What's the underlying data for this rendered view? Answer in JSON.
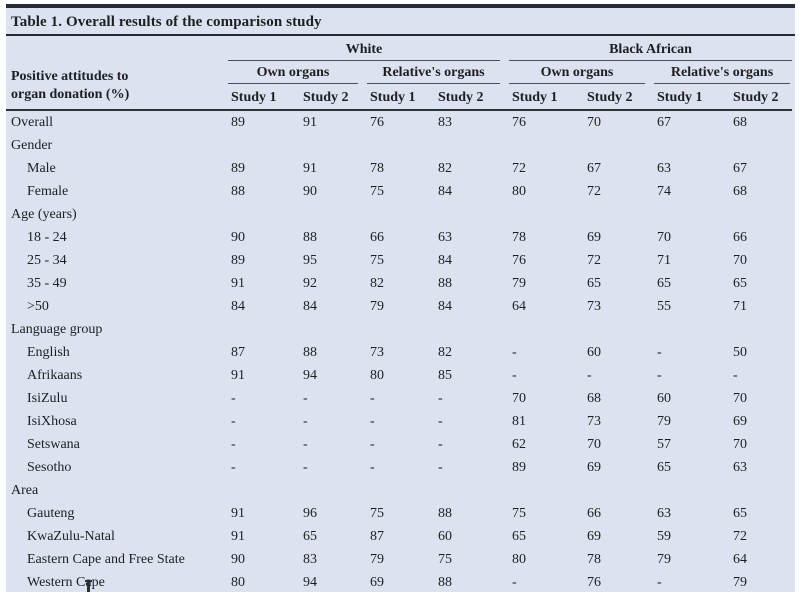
{
  "title": "Table 1. Overall results of the comparison study",
  "header": {
    "row_label_line1": "Positive attitudes to",
    "row_label_line2": "organ donation (%)",
    "group1": "White",
    "group2": "Black African",
    "subgroups": [
      "Own organs",
      "Relative's organs",
      "Own organs",
      "Relative's organs"
    ],
    "study_cols": [
      "Study 1",
      "Study 2",
      "Study 1",
      "Study 2",
      "Study 1",
      "Study 2",
      "Study 1",
      "Study 2"
    ]
  },
  "colors": {
    "table_background": "#dce2ef",
    "rule_dark": "#272b33",
    "rule_light": "#4b515d",
    "text": "#1e1f24",
    "page_background": "#ffffff"
  },
  "rows": [
    {
      "label": "Overall",
      "type": "data",
      "indent": false,
      "values": [
        "89",
        "91",
        "76",
        "83",
        "76",
        "70",
        "67",
        "68"
      ]
    },
    {
      "label": "Gender",
      "type": "section",
      "indent": false,
      "values": []
    },
    {
      "label": "Male",
      "type": "data",
      "indent": true,
      "values": [
        "89",
        "91",
        "78",
        "82",
        "72",
        "67",
        "63",
        "67"
      ]
    },
    {
      "label": "Female",
      "type": "data",
      "indent": true,
      "values": [
        "88",
        "90",
        "75",
        "84",
        "80",
        "72",
        "74",
        "68"
      ]
    },
    {
      "label": "Age (years)",
      "type": "section",
      "indent": false,
      "values": []
    },
    {
      "label": "18 - 24",
      "type": "data",
      "indent": true,
      "values": [
        "90",
        "88",
        "66",
        "63",
        "78",
        "69",
        "70",
        "66"
      ]
    },
    {
      "label": "25 - 34",
      "type": "data",
      "indent": true,
      "values": [
        "89",
        "95",
        "75",
        "84",
        "76",
        "72",
        "71",
        "70"
      ]
    },
    {
      "label": "35 - 49",
      "type": "data",
      "indent": true,
      "values": [
        "91",
        "92",
        "82",
        "88",
        "79",
        "65",
        "65",
        "65"
      ]
    },
    {
      "label": ">50",
      "type": "data",
      "indent": true,
      "values": [
        "84",
        "84",
        "79",
        "84",
        "64",
        "73",
        "55",
        "71"
      ]
    },
    {
      "label": "Language group",
      "type": "section",
      "indent": false,
      "values": []
    },
    {
      "label": "English",
      "type": "data",
      "indent": true,
      "values": [
        "87",
        "88",
        "73",
        "82",
        "-",
        "60",
        "-",
        "50"
      ]
    },
    {
      "label": "Afrikaans",
      "type": "data",
      "indent": true,
      "values": [
        "91",
        "94",
        "80",
        "85",
        "-",
        "-",
        "-",
        "-"
      ]
    },
    {
      "label": "IsiZulu",
      "type": "data",
      "indent": true,
      "values": [
        "-",
        "-",
        "-",
        "-",
        "70",
        "68",
        "60",
        "70"
      ]
    },
    {
      "label": "IsiXhosa",
      "type": "data",
      "indent": true,
      "values": [
        "-",
        "-",
        "-",
        "-",
        "81",
        "73",
        "79",
        "69"
      ]
    },
    {
      "label": "Setswana",
      "type": "data",
      "indent": true,
      "values": [
        "-",
        "-",
        "-",
        "-",
        "62",
        "70",
        "57",
        "70"
      ]
    },
    {
      "label": "Sesotho",
      "type": "data",
      "indent": true,
      "values": [
        "-",
        "-",
        "-",
        "-",
        "89",
        "69",
        "65",
        "63"
      ]
    },
    {
      "label": "Area",
      "type": "section",
      "indent": false,
      "values": []
    },
    {
      "label": "Gauteng",
      "type": "data",
      "indent": true,
      "values": [
        "91",
        "96",
        "75",
        "88",
        "75",
        "66",
        "63",
        "65"
      ]
    },
    {
      "label": "KwaZulu-Natal",
      "type": "data",
      "indent": true,
      "values": [
        "91",
        "65",
        "87",
        "60",
        "65",
        "69",
        "59",
        "72"
      ]
    },
    {
      "label": "Eastern Cape and Free State",
      "type": "data",
      "indent": true,
      "values": [
        "90",
        "83",
        "79",
        "75",
        "80",
        "78",
        "79",
        "64"
      ]
    },
    {
      "label": "Western Cape",
      "type": "data",
      "indent": true,
      "values": [
        "80",
        "94",
        "69",
        "88",
        "-",
        "76",
        "-",
        "79"
      ]
    }
  ]
}
